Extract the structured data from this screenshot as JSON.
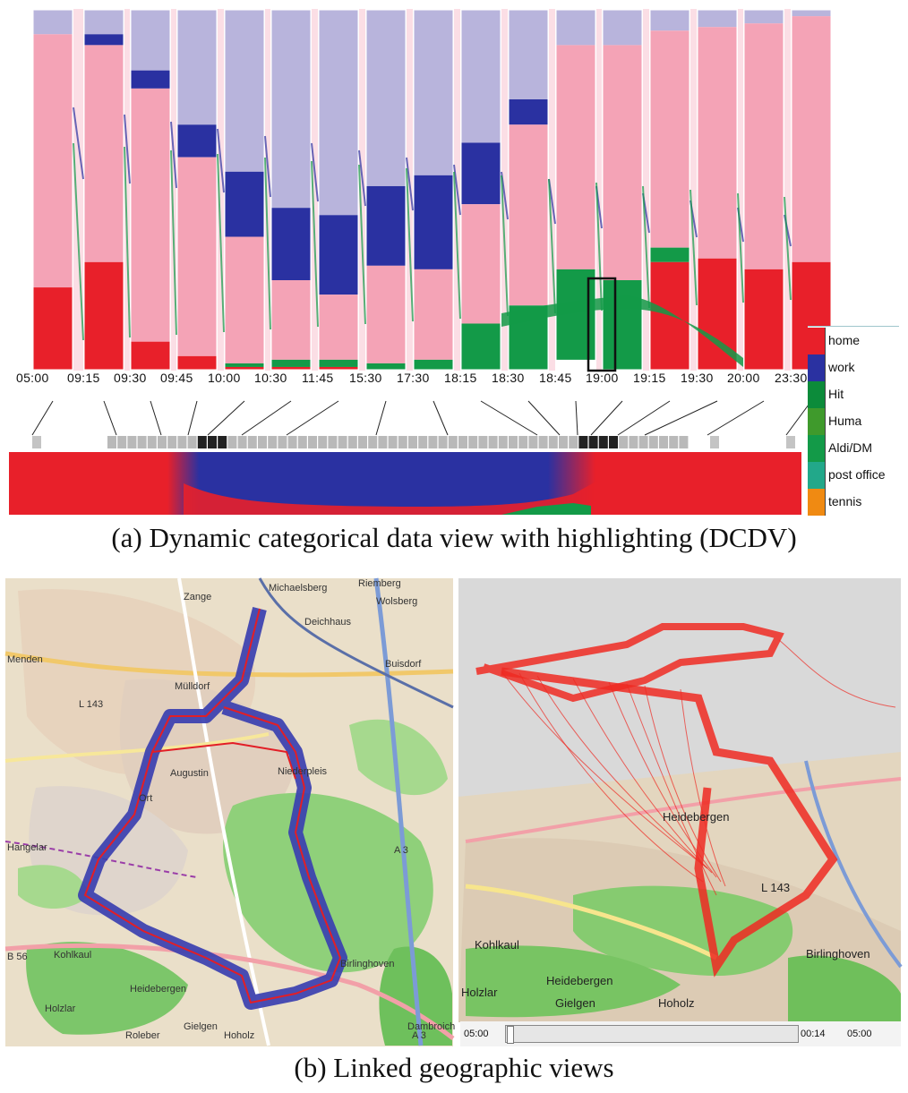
{
  "colors": {
    "home": "#e8202a",
    "work": "#2a31a1",
    "hit": "#0c8b3a",
    "huma": "#3f9a2c",
    "aldi_dm": "#139a48",
    "post_office": "#22a88a",
    "tennis": "#f08a12",
    "home_light": "#f4a3b6",
    "work_light": "#b8b4dc"
  },
  "dcdv": {
    "time_labels": [
      "05:00",
      "09:15",
      "09:30",
      "09:45",
      "10:00",
      "10:30",
      "11:45",
      "15:30",
      "17:30",
      "18:15",
      "18:30",
      "18:45",
      "19:00",
      "19:15",
      "19:30",
      "20:00",
      "23:30"
    ],
    "highlighted_time": "19:00",
    "legend": [
      {
        "label": "home",
        "color": "#e8202a"
      },
      {
        "label": "work",
        "color": "#2a31a1"
      },
      {
        "label": "Hit",
        "color": "#0c8b3a"
      },
      {
        "label": "Huma",
        "color": "#3f9a2c"
      },
      {
        "label": "Aldi/DM",
        "color": "#139a48"
      },
      {
        "label": "post office",
        "color": "#22a88a"
      },
      {
        "label": "tennis",
        "color": "#f08a12"
      }
    ]
  },
  "captions": {
    "a": "(a)  Dynamic categorical data view with highlighting (DCDV)",
    "b": "(b)  Linked geographic views"
  },
  "map_left": {
    "labels": [
      "Zange",
      "Michaelsberg",
      "Riemberg",
      "Wolsberg",
      "Deichhaus",
      "Menden",
      "Mülldorf",
      "L 143",
      "Buisdorf",
      "Augustin",
      "Niederpleis",
      "Ort",
      "Hangelar",
      "A 3",
      "B 56",
      "Kohlkaul",
      "Birlinghoven",
      "Heidebergen",
      "Holzlar",
      "Dambroich",
      "Gielgen",
      "Hoholz",
      "Roleber",
      "A 3"
    ]
  },
  "map_right": {
    "labels": [
      "Kohlkaul",
      "Heidebergen",
      "Holzlar",
      "Gielgen",
      "Hoholz",
      "Birlinghoven",
      "Heidebergen",
      "L 143"
    ],
    "player": {
      "start_time": "05:00",
      "current_time": "00:14",
      "end_time": "05:00"
    }
  }
}
